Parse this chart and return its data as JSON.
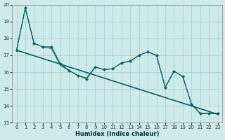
{
  "xlabel": "Humidex (Indice chaleur)",
  "bg_color": "#ceeaea",
  "grid_color": "#aacccc",
  "line_color": "#006666",
  "xlim": [
    -0.5,
    23.5
  ],
  "ylim": [
    13,
    20
  ],
  "xticks": [
    0,
    1,
    2,
    3,
    4,
    5,
    6,
    7,
    8,
    9,
    10,
    11,
    12,
    13,
    14,
    15,
    16,
    17,
    18,
    19,
    20,
    21,
    22,
    23
  ],
  "yticks": [
    13,
    14,
    15,
    16,
    17,
    18,
    19,
    20
  ],
  "zigzag_x": [
    0,
    1,
    2,
    3,
    4,
    5,
    6,
    7,
    8,
    9,
    10,
    11,
    12,
    13,
    14,
    15,
    16,
    17,
    18,
    19,
    20,
    21,
    22,
    23
  ],
  "zigzag_y": [
    17.3,
    19.8,
    17.7,
    17.5,
    17.5,
    16.5,
    16.1,
    15.8,
    15.6,
    16.3,
    16.15,
    16.2,
    16.55,
    16.65,
    17.0,
    17.2,
    17.0,
    15.1,
    16.05,
    15.75,
    14.1,
    13.55,
    13.55,
    13.55
  ],
  "smooth_x": [
    0,
    1,
    2,
    3,
    4,
    5,
    6,
    7,
    8,
    9,
    10,
    11,
    12,
    13,
    14,
    15,
    16,
    17,
    18,
    19,
    20,
    21,
    22,
    23
  ],
  "smooth_y": [
    17.3,
    19.8,
    17.7,
    17.5,
    17.4,
    16.4,
    16.1,
    15.8,
    15.65,
    16.3,
    16.15,
    16.2,
    16.55,
    16.65,
    17.0,
    17.2,
    17.0,
    15.1,
    16.05,
    15.75,
    14.1,
    13.55,
    13.55,
    13.55
  ],
  "trend_x": [
    0,
    23
  ],
  "trend_y": [
    17.3,
    13.5
  ]
}
